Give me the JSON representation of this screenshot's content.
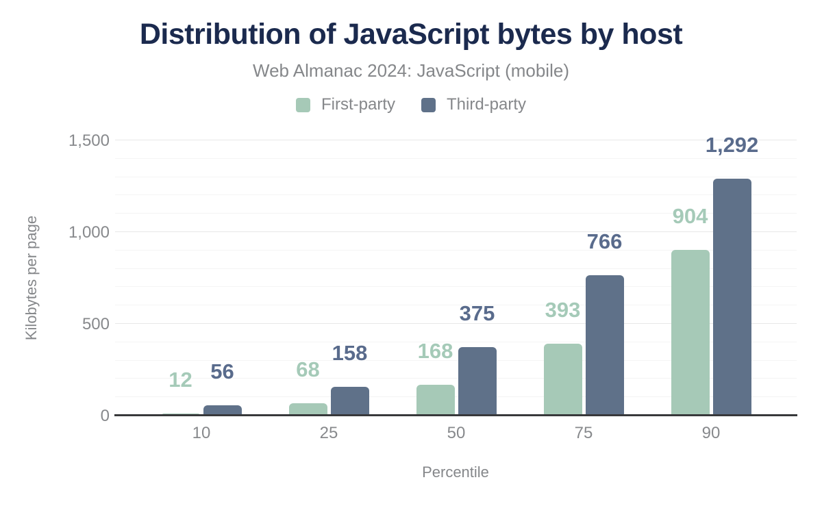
{
  "chart_data": {
    "type": "bar",
    "title": "Distribution of JavaScript bytes by host",
    "subtitle": "Web Almanac 2024: JavaScript (mobile)",
    "xlabel": "Percentile",
    "ylabel": "Kilobytes per page",
    "categories": [
      "10",
      "25",
      "50",
      "75",
      "90"
    ],
    "series": [
      {
        "name": "First-party",
        "color": "#a6c9b7",
        "label_color": "#a5cab8",
        "values": [
          12,
          68,
          168,
          393,
          904
        ]
      },
      {
        "name": "Third-party",
        "color": "#5f7189",
        "label_color": "#596b8c",
        "values": [
          56,
          158,
          375,
          766,
          1292
        ]
      }
    ],
    "ylim": [
      0,
      1500
    ],
    "yticks": [
      0,
      500,
      1000,
      1500
    ],
    "minor_grid_step": 100,
    "grid": true,
    "legend_position": "top"
  },
  "colors": {
    "title": "#1b2a4e",
    "subtitle": "#85878a",
    "tick": "#87898c",
    "grid_major": "#e8e8e8",
    "grid_minor": "#f4f4f4",
    "axis_line": "#38393b",
    "background": "#ffffff"
  }
}
